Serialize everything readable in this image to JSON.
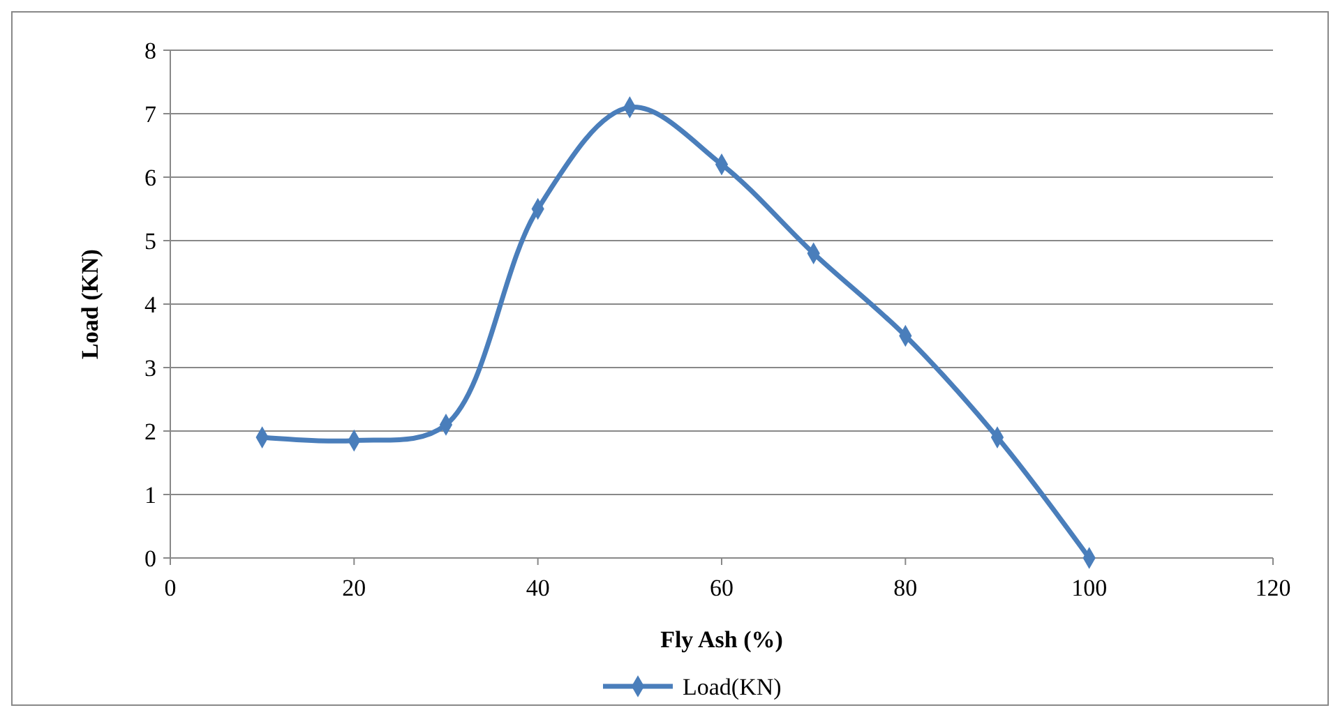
{
  "chart_data": {
    "type": "line",
    "xlabel": "Fly Ash (%)",
    "ylabel": "Load (KN)",
    "x": [
      10,
      20,
      30,
      40,
      50,
      60,
      70,
      80,
      90,
      100
    ],
    "series": [
      {
        "name": "Load(KN)",
        "color": "#4a7ebb",
        "values": [
          1.9,
          1.85,
          2.1,
          5.5,
          7.1,
          6.2,
          4.8,
          3.5,
          1.9,
          0
        ]
      }
    ],
    "xlim": [
      0,
      120
    ],
    "xticks": [
      0,
      20,
      40,
      60,
      80,
      100,
      120
    ],
    "ylim": [
      0,
      8
    ],
    "yticks": [
      0,
      1,
      2,
      3,
      4,
      5,
      6,
      7,
      8
    ],
    "grid": "y",
    "legend": "bottom",
    "marker": "diamond",
    "line_style": "solid"
  }
}
